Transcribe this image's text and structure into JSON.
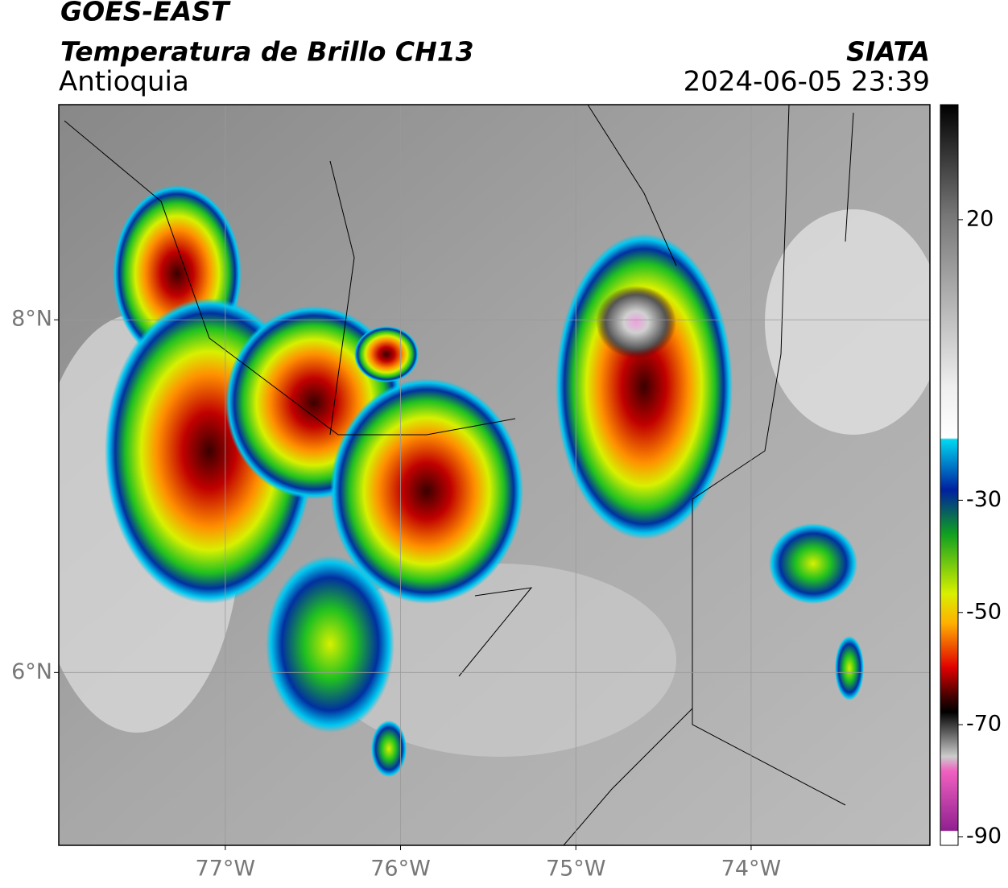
{
  "map": {
    "title": "GOES-EAST",
    "subtitle": "Temperatura de Brillo CH13",
    "region": "Antioquia",
    "source": "SIATA",
    "timestamp": "2024-06-05 23:39",
    "xlim": [
      -77.95,
      -72.98
    ],
    "ylim": [
      5.02,
      9.22
    ],
    "xticks": [
      {
        "value": -77,
        "label": "77°W"
      },
      {
        "value": -76,
        "label": "76°W"
      },
      {
        "value": -75,
        "label": "75°W"
      },
      {
        "value": -74,
        "label": "74°W"
      }
    ],
    "yticks": [
      {
        "value": 8,
        "label": "8°N"
      },
      {
        "value": 6,
        "label": "6°N"
      }
    ],
    "grid": true,
    "colorbar": {
      "lim": [
        -91.5,
        40.5
      ],
      "ticks": [
        20,
        -30,
        -50,
        -70,
        -90
      ]
    }
  }
}
